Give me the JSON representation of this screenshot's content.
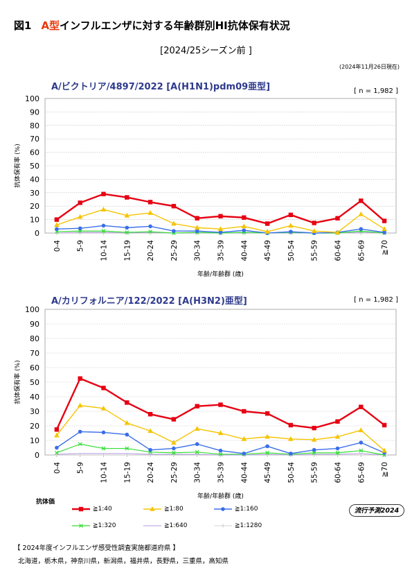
{
  "figure": {
    "number": "図1",
    "title_highlight": "A型",
    "title_rest": "インフルエンザに対する年齢群別HI抗体保有状況",
    "subtitle": "[2024/25シーズン前 ]",
    "as_of": "(2024年11月26日現在)"
  },
  "legend": {
    "title": "抗体価",
    "items": [
      {
        "label": "≧1:40",
        "color": "#e60012",
        "marker": "square"
      },
      {
        "label": "≧1:80",
        "color": "#f5c400",
        "marker": "triangle"
      },
      {
        "label": "≧1:160",
        "color": "#3a6ee8",
        "marker": "circle"
      },
      {
        "label": "≧1:320",
        "color": "#33dd33",
        "marker": "cross"
      },
      {
        "label": "≧1:640",
        "color": "#b399e0",
        "marker": "none"
      },
      {
        "label": "≧1:1280",
        "color": "#c8c8c8",
        "marker": "plus"
      }
    ]
  },
  "badge": "流行予測2024",
  "footer": {
    "title": "【 2024年度インフルエンザ感受性調査実施都道府県 】",
    "prefectures": "北海道，栃木県，神奈川県，新潟県，福井県，長野県，三重県，高知県"
  },
  "chart_data": [
    {
      "type": "line",
      "title": "A/ビクトリア/4897/2022 [A(H1N1)pdm09亜型]",
      "n_label": "[ n = 1,982 ]",
      "xlabel": "年齢/年齢群 (歳)",
      "ylabel": "抗体保有率 (%)",
      "ylim": [
        0,
        100
      ],
      "yticks": [
        0,
        10,
        20,
        30,
        40,
        50,
        60,
        70,
        80,
        90,
        100
      ],
      "grid": true,
      "categories": [
        "0-4",
        "5-9",
        "10-14",
        "15-19",
        "20-24",
        "25-29",
        "30-34",
        "35-39",
        "40-44",
        "45-49",
        "50-54",
        "55-59",
        "60-64",
        "65-69",
        "≧70"
      ],
      "series": [
        {
          "name": "≧1:40",
          "values": [
            10,
            22.5,
            29,
            26.5,
            23,
            20,
            11,
            12.5,
            11.5,
            7,
            13.5,
            7.5,
            11,
            24,
            9
          ]
        },
        {
          "name": "≧1:80",
          "values": [
            6,
            12,
            17.5,
            13,
            15,
            7,
            4,
            3,
            5,
            1,
            5.5,
            1.5,
            0.5,
            14,
            3
          ]
        },
        {
          "name": "≧1:160",
          "values": [
            3,
            3.5,
            5.5,
            4,
            5,
            1.5,
            1.5,
            0.5,
            2,
            0,
            1,
            0,
            0.5,
            3,
            0.5
          ]
        },
        {
          "name": "≧1:320",
          "values": [
            1,
            1.5,
            1.5,
            0.5,
            1,
            0,
            0.5,
            0,
            0.5,
            0,
            0.5,
            0,
            0,
            1.5,
            0
          ]
        },
        {
          "name": "≧1:640",
          "values": [
            0,
            0.5,
            0.5,
            0,
            0.5,
            0,
            0,
            0,
            0,
            0,
            0,
            0,
            0,
            0.5,
            0
          ]
        },
        {
          "name": "≧1:1280",
          "values": [
            0,
            0,
            0,
            0,
            0,
            0,
            0,
            0,
            0,
            0,
            0,
            0,
            0,
            0,
            0
          ]
        }
      ]
    },
    {
      "type": "line",
      "title": "A/カリフォルニア/122/2022 [A(H3N2)亜型]",
      "n_label": "[ n = 1,982 ]",
      "xlabel": "年齢/年齢群 (歳)",
      "ylabel": "抗体保有率 (%)",
      "ylim": [
        0,
        100
      ],
      "yticks": [
        0,
        10,
        20,
        30,
        40,
        50,
        60,
        70,
        80,
        90,
        100
      ],
      "grid": true,
      "categories": [
        "0-4",
        "5-9",
        "10-14",
        "15-19",
        "20-24",
        "25-29",
        "30-34",
        "35-39",
        "40-44",
        "45-49",
        "50-54",
        "55-59",
        "60-64",
        "65-69",
        "≧70"
      ],
      "series": [
        {
          "name": "≧1:40",
          "values": [
            17.5,
            52.5,
            46,
            36,
            28,
            24.5,
            33.5,
            34.5,
            30,
            28.5,
            20.5,
            18.5,
            23,
            33,
            20.5
          ]
        },
        {
          "name": "≧1:80",
          "values": [
            13.5,
            34,
            32,
            22,
            16.5,
            8.5,
            18,
            15,
            11,
            12.5,
            11,
            10.5,
            12.5,
            17,
            3
          ]
        },
        {
          "name": "≧1:160",
          "values": [
            5,
            16,
            15.5,
            14,
            3.5,
            4.5,
            7.5,
            3,
            1,
            6,
            1,
            3.5,
            4.5,
            8.5,
            1.5
          ]
        },
        {
          "name": "≧1:320",
          "values": [
            1.5,
            7.5,
            4.5,
            4.5,
            2,
            1.5,
            2,
            0.5,
            0.5,
            1.5,
            0.5,
            1.5,
            1.5,
            3,
            0
          ]
        },
        {
          "name": "≧1:640",
          "values": [
            0.5,
            1,
            1,
            1,
            0.5,
            0.5,
            0.5,
            0,
            0,
            0.5,
            0,
            0.5,
            0.5,
            1,
            0
          ]
        },
        {
          "name": "≧1:1280",
          "values": [
            0,
            0,
            0,
            0,
            0,
            0,
            0,
            0,
            0,
            0,
            0,
            0,
            0,
            0,
            0
          ]
        }
      ]
    }
  ]
}
